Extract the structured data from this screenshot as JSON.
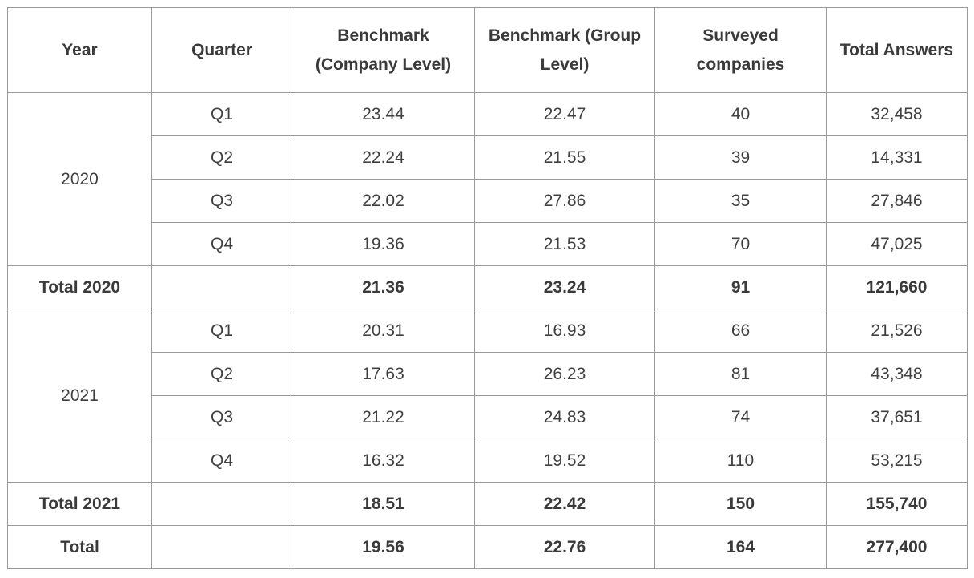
{
  "headers": [
    "Year",
    "Quarter",
    "Benchmark (Company Level)",
    "Benchmark (Group Level)",
    "Surveyed companies",
    "Total Answers"
  ],
  "groups": [
    {
      "year": "2020",
      "rows": [
        {
          "quarter": "Q1",
          "company": "23.44",
          "group": "22.47",
          "surveyed": "40",
          "answers": "32,458"
        },
        {
          "quarter": "Q2",
          "company": "22.24",
          "group": "21.55",
          "surveyed": "39",
          "answers": "14,331"
        },
        {
          "quarter": "Q3",
          "company": "22.02",
          "group": "27.86",
          "surveyed": "35",
          "answers": "27,846"
        },
        {
          "quarter": "Q4",
          "company": "19.36",
          "group": "21.53",
          "surveyed": "70",
          "answers": "47,025"
        }
      ],
      "total": {
        "label": "Total 2020",
        "quarter": "",
        "company": "21.36",
        "group": "23.24",
        "surveyed": "91",
        "answers": "121,660"
      }
    },
    {
      "year": "2021",
      "rows": [
        {
          "quarter": "Q1",
          "company": "20.31",
          "group": "16.93",
          "surveyed": "66",
          "answers": "21,526"
        },
        {
          "quarter": "Q2",
          "company": "17.63",
          "group": "26.23",
          "surveyed": "81",
          "answers": "43,348"
        },
        {
          "quarter": "Q3",
          "company": "21.22",
          "group": "24.83",
          "surveyed": "74",
          "answers": "37,651"
        },
        {
          "quarter": "Q4",
          "company": "16.32",
          "group": "19.52",
          "surveyed": "110",
          "answers": "53,215"
        }
      ],
      "total": {
        "label": "Total 2021",
        "quarter": "",
        "company": "18.51",
        "group": "22.42",
        "surveyed": "150",
        "answers": "155,740"
      }
    }
  ],
  "grand_total": {
    "label": "Total",
    "quarter": "",
    "company": "19.56",
    "group": "22.76",
    "surveyed": "164",
    "answers": "277,400"
  }
}
